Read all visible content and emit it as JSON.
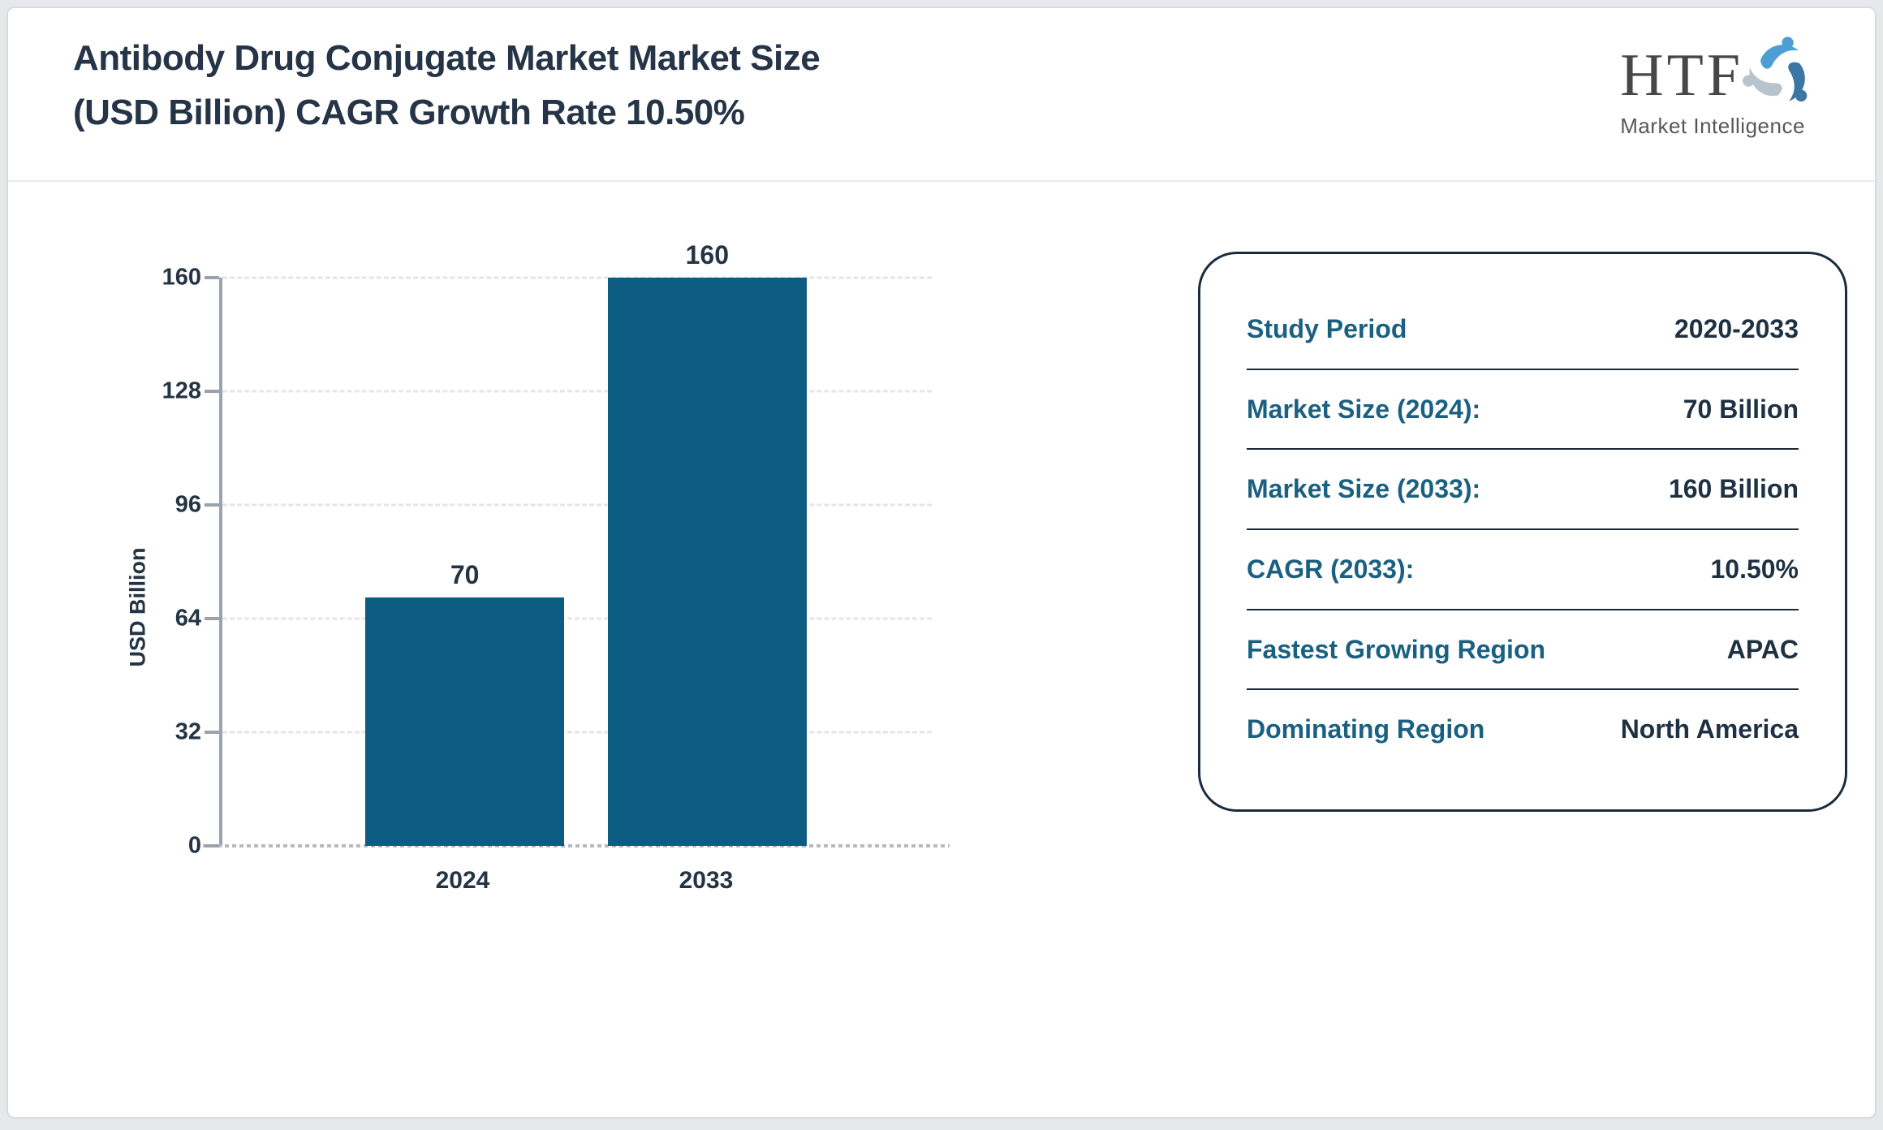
{
  "header": {
    "title_line1": "Antibody Drug Conjugate Market Market Size",
    "title_line2": "(USD Billion) CAGR Growth Rate 10.50%",
    "logo_text": "HTF",
    "logo_subtext": "Market Intelligence"
  },
  "colors": {
    "bar": "#0d5c81",
    "navy_text": "#243444",
    "teal_label": "#1a6080",
    "axis_gray": "#9aa2ac",
    "logo_light_blue": "#4d9fd3",
    "logo_dark_blue": "#3c76a4",
    "logo_gray_blue": "#b7c3cd"
  },
  "chart_data": {
    "type": "bar",
    "title": "Antibody Drug Conjugate Market Market Size (USD Billion) CAGR Growth Rate 10.50%",
    "categories": [
      "2024",
      "2033"
    ],
    "values": [
      70,
      160
    ],
    "bar_labels": [
      "70",
      "160"
    ],
    "xlabel": "",
    "ylabel": "USD Billion",
    "ylim": [
      0,
      160
    ],
    "yticks": [
      0,
      32,
      64,
      96,
      128,
      160
    ],
    "grid": "horizontal-dashed",
    "legend": "none",
    "bar_color": "#0d5c81"
  },
  "info_panel": {
    "rows": [
      {
        "label": "Study Period",
        "value": "2020-2033"
      },
      {
        "label": "Market Size (2024):",
        "value": "70 Billion"
      },
      {
        "label": "Market Size (2033):",
        "value": "160 Billion"
      },
      {
        "label": "CAGR (2033):",
        "value": "10.50%"
      },
      {
        "label": "Fastest Growing Region",
        "value": "APAC"
      },
      {
        "label": "Dominating Region",
        "value": "North America"
      }
    ]
  }
}
